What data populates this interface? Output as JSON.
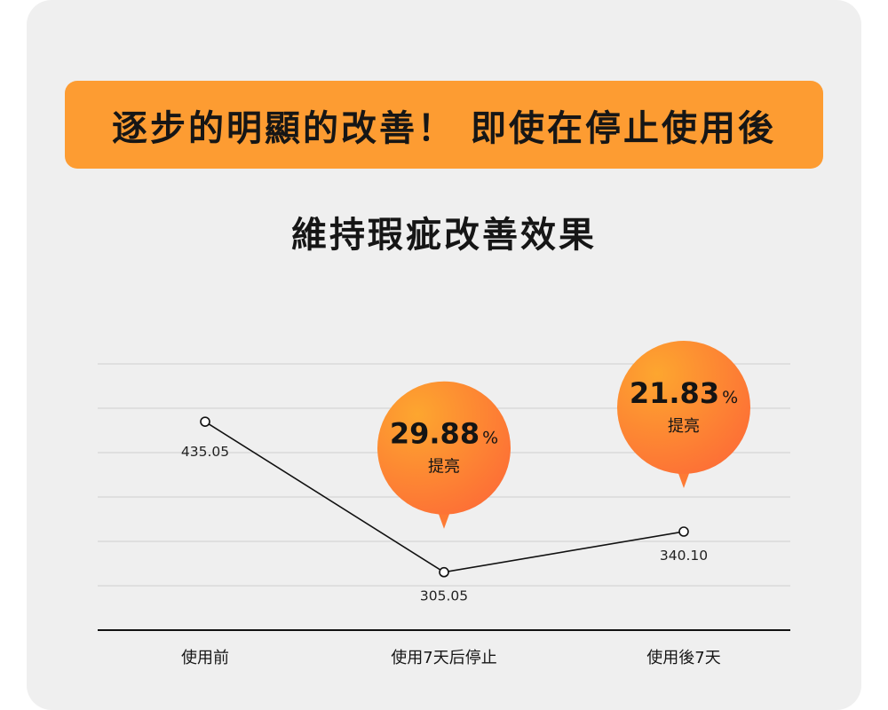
{
  "banner": {
    "text": "逐步的明顯的改善！ 即使在停止使用後"
  },
  "chart_data": {
    "type": "line",
    "title": "維持瑕疵改善效果",
    "categories": [
      "使用前",
      "使用7天后停止",
      "使用後7天"
    ],
    "values": [
      435.05,
      305.05,
      340.1
    ],
    "value_labels": [
      "435.05",
      "305.05",
      "340.10"
    ],
    "ylim": [
      255,
      485
    ],
    "grid": true,
    "callouts": [
      {
        "category_index": 1,
        "value": "29.88",
        "unit": "%",
        "label": "提亮"
      },
      {
        "category_index": 2,
        "value": "21.83",
        "unit": "%",
        "label": "提亮"
      }
    ],
    "colors": {
      "line": "#111111",
      "grid": "#cfcfcf",
      "callout_from": "#fda02e",
      "callout_to": "#fd6f35"
    }
  }
}
